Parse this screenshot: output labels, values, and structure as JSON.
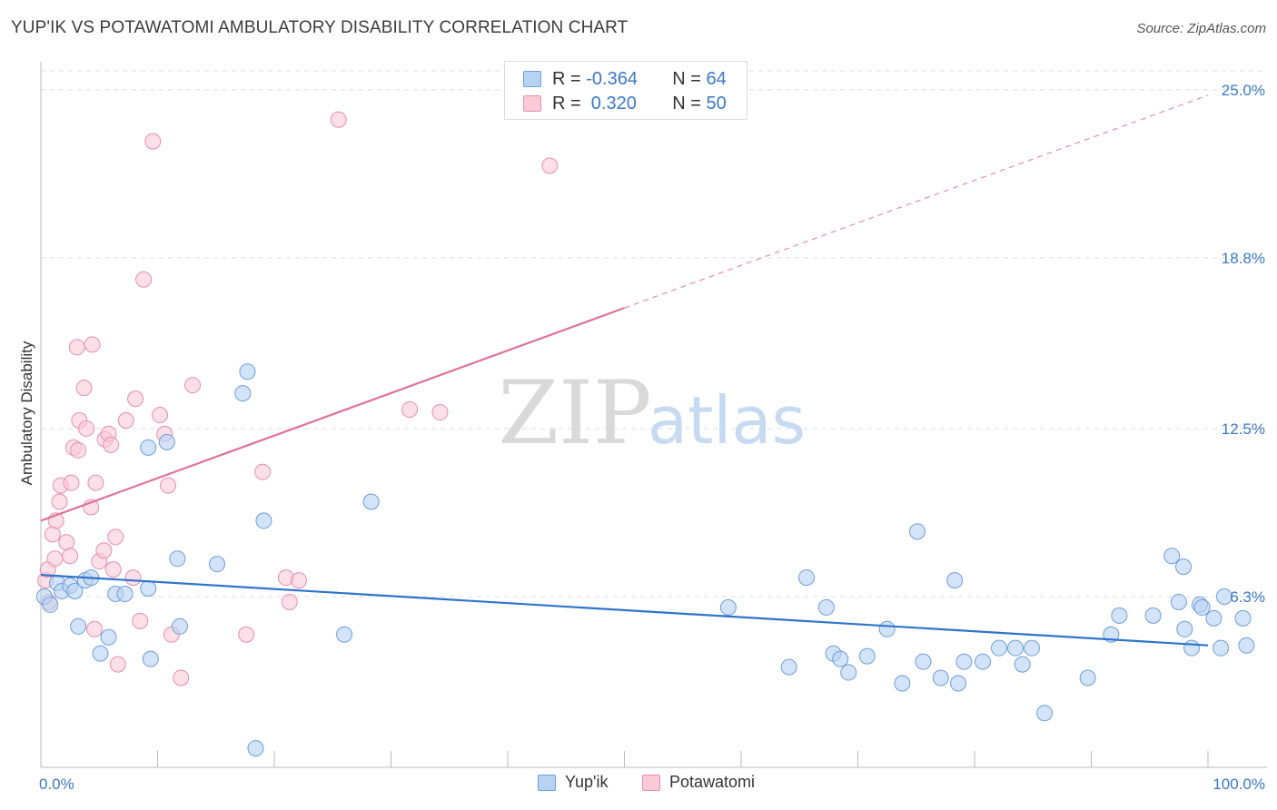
{
  "title": "YUP'IK VS POTAWATOMI AMBULATORY DISABILITY CORRELATION CHART",
  "source": "Source: ZipAtlas.com",
  "watermark": {
    "zip": "ZIP",
    "atlas": "atlas"
  },
  "colors": {
    "blue_fill": "#b8d2f3",
    "blue_stroke": "#6e9ed8",
    "blue_line": "#2f74cc",
    "pink_fill": "#fbcad8",
    "pink_stroke": "#e48fae",
    "pink_line": "#e0729a",
    "tick_label": "#3a78c9",
    "grid": "#dddddd"
  },
  "legend": {
    "rows": [
      {
        "r_label": "R = ",
        "r_value": "-0.364",
        "n_label": "N = ",
        "n_value": "64"
      },
      {
        "r_label": "R = ",
        "r_value": " 0.320",
        "n_label": "N = ",
        "n_value": "50"
      }
    ]
  },
  "chart_data": {
    "type": "scatter",
    "title": "YUP'IK VS POTAWATOMI AMBULATORY DISABILITY CORRELATION CHART",
    "xlabel": "",
    "ylabel": "Ambulatory Disability",
    "xlim": [
      0,
      100
    ],
    "ylim": [
      0,
      25.7
    ],
    "x_tick_labels": [
      {
        "value": 0,
        "label": "0.0%"
      },
      {
        "value": 100,
        "label": "100.0%"
      }
    ],
    "y_tick_labels": [
      {
        "value": 6.3,
        "label": "6.3%"
      },
      {
        "value": 12.5,
        "label": "12.5%"
      },
      {
        "value": 18.8,
        "label": "18.8%"
      },
      {
        "value": 25.0,
        "label": "25.0%"
      }
    ],
    "grid": "horizontal dashed",
    "legend_position": "bottom-center",
    "series": [
      {
        "name": "Yup'ik",
        "color": "#b8d2f3",
        "trend": {
          "x0": 0,
          "y0": 7.1,
          "x1": 100,
          "y1": 4.5,
          "solid_until": 100
        },
        "points": [
          [
            0.3,
            6.3
          ],
          [
            0.8,
            6.0
          ],
          [
            1.4,
            6.8
          ],
          [
            1.8,
            6.5
          ],
          [
            2.5,
            6.7
          ],
          [
            2.9,
            6.5
          ],
          [
            3.2,
            5.2
          ],
          [
            3.8,
            6.9
          ],
          [
            4.3,
            7.0
          ],
          [
            5.1,
            4.2
          ],
          [
            5.8,
            4.8
          ],
          [
            6.4,
            6.4
          ],
          [
            7.2,
            6.4
          ],
          [
            9.2,
            11.8
          ],
          [
            9.2,
            6.6
          ],
          [
            9.4,
            4.0
          ],
          [
            10.8,
            12.0
          ],
          [
            11.7,
            7.7
          ],
          [
            11.9,
            5.2
          ],
          [
            15.1,
            7.5
          ],
          [
            17.3,
            13.8
          ],
          [
            17.7,
            14.6
          ],
          [
            18.4,
            0.7
          ],
          [
            19.1,
            9.1
          ],
          [
            26.0,
            4.9
          ],
          [
            28.3,
            9.8
          ],
          [
            58.9,
            5.9
          ],
          [
            64.1,
            3.7
          ],
          [
            65.6,
            7.0
          ],
          [
            67.3,
            5.9
          ],
          [
            67.9,
            4.2
          ],
          [
            68.5,
            4.0
          ],
          [
            69.2,
            3.5
          ],
          [
            70.8,
            4.1
          ],
          [
            72.5,
            5.1
          ],
          [
            73.8,
            3.1
          ],
          [
            75.1,
            8.7
          ],
          [
            75.6,
            3.9
          ],
          [
            77.1,
            3.3
          ],
          [
            78.3,
            6.9
          ],
          [
            78.6,
            3.1
          ],
          [
            79.1,
            3.9
          ],
          [
            80.7,
            3.9
          ],
          [
            82.1,
            4.4
          ],
          [
            83.5,
            4.4
          ],
          [
            84.1,
            3.8
          ],
          [
            84.9,
            4.4
          ],
          [
            86.0,
            2.0
          ],
          [
            89.7,
            3.3
          ],
          [
            91.7,
            4.9
          ],
          [
            92.4,
            5.6
          ],
          [
            95.3,
            5.6
          ],
          [
            96.9,
            7.8
          ],
          [
            97.5,
            6.1
          ],
          [
            97.9,
            7.4
          ],
          [
            98.0,
            5.1
          ],
          [
            98.6,
            4.4
          ],
          [
            99.3,
            6.0
          ],
          [
            99.5,
            5.9
          ],
          [
            100.5,
            5.5
          ],
          [
            101.1,
            4.4
          ],
          [
            101.4,
            6.3
          ],
          [
            103.0,
            5.5
          ],
          [
            103.3,
            4.5
          ]
        ]
      },
      {
        "name": "Potawatomi",
        "color": "#fbcad8",
        "trend": {
          "x0": 0,
          "y0": 9.1,
          "x1": 100,
          "y1": 24.8,
          "solid_until": 50
        },
        "points": [
          [
            0.4,
            6.9
          ],
          [
            0.6,
            7.3
          ],
          [
            0.7,
            6.1
          ],
          [
            1.0,
            8.6
          ],
          [
            1.2,
            7.7
          ],
          [
            1.3,
            9.1
          ],
          [
            1.6,
            9.8
          ],
          [
            1.7,
            10.4
          ],
          [
            2.2,
            8.3
          ],
          [
            2.5,
            7.8
          ],
          [
            2.6,
            10.5
          ],
          [
            2.8,
            11.8
          ],
          [
            3.2,
            11.7
          ],
          [
            3.1,
            15.5
          ],
          [
            3.3,
            12.8
          ],
          [
            3.7,
            14.0
          ],
          [
            3.9,
            12.5
          ],
          [
            4.3,
            9.6
          ],
          [
            4.4,
            15.6
          ],
          [
            4.6,
            5.1
          ],
          [
            4.7,
            10.5
          ],
          [
            5.0,
            7.6
          ],
          [
            5.4,
            8.0
          ],
          [
            5.5,
            12.1
          ],
          [
            5.8,
            12.3
          ],
          [
            6.0,
            11.9
          ],
          [
            6.2,
            7.3
          ],
          [
            6.4,
            8.5
          ],
          [
            6.6,
            3.8
          ],
          [
            7.3,
            12.8
          ],
          [
            7.9,
            7.0
          ],
          [
            8.1,
            13.6
          ],
          [
            8.5,
            5.4
          ],
          [
            8.8,
            18.0
          ],
          [
            9.6,
            23.1
          ],
          [
            10.2,
            13.0
          ],
          [
            10.6,
            12.3
          ],
          [
            10.9,
            10.4
          ],
          [
            11.2,
            4.9
          ],
          [
            12.0,
            3.3
          ],
          [
            13.0,
            14.1
          ],
          [
            17.6,
            4.9
          ],
          [
            19.0,
            10.9
          ],
          [
            21.0,
            7.0
          ],
          [
            21.3,
            6.1
          ],
          [
            22.1,
            6.9
          ],
          [
            25.5,
            23.9
          ],
          [
            31.6,
            13.2
          ],
          [
            34.2,
            13.1
          ],
          [
            43.6,
            22.2
          ]
        ]
      }
    ]
  }
}
